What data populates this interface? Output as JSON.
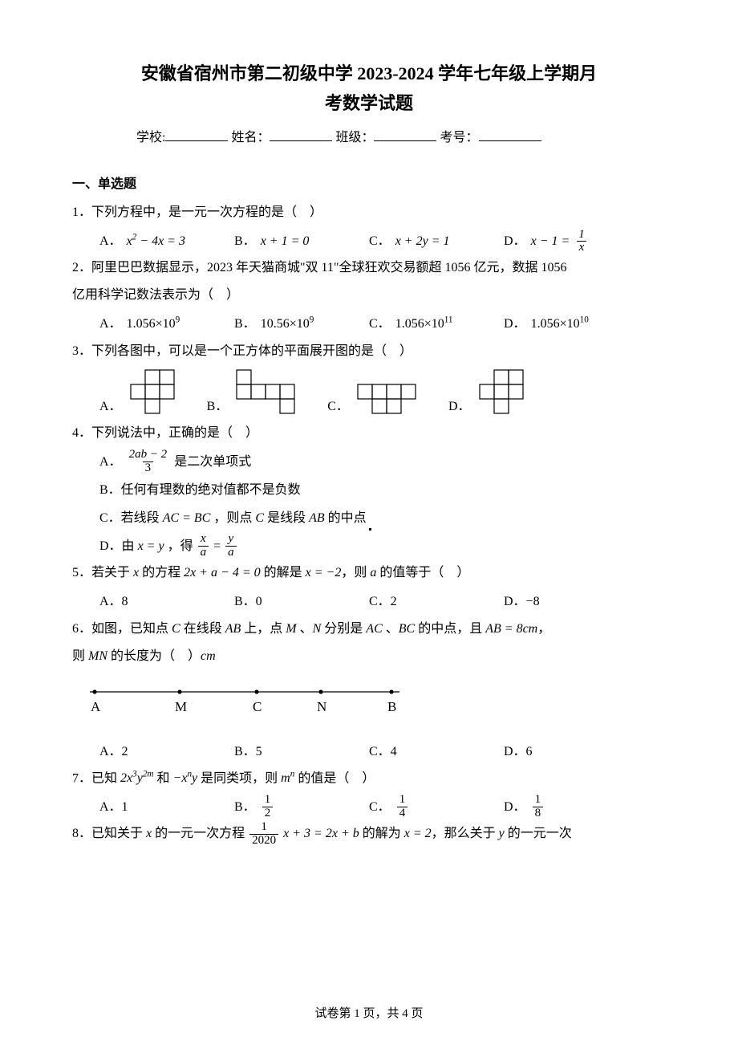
{
  "title_line1": "安徽省宿州市第二初级中学 2023-2024 学年七年级上学期月",
  "title_line2": "考数学试题",
  "blanks": {
    "school": "学校:",
    "name": "姓名：",
    "class": "班级：",
    "exam_no": "考号："
  },
  "section1": "一、单选题",
  "q1": {
    "stem": "1．下列方程中，是一元一次方程的是（　）",
    "A": "A．",
    "B": "B．",
    "C": "C．",
    "D": "D．",
    "A_expr_left": "x",
    "A_expr_sup": "2",
    "A_expr_mid": "− 4x = 3",
    "B_expr": "x + 1 = 0",
    "C_expr": "x + 2y = 1",
    "D_expr_left": "x − 1 =",
    "D_frac_num": "1",
    "D_frac_den": "x"
  },
  "q2": {
    "stem_a": "2．阿里巴巴数据显示，2023 年天猫商城\"双 11\"全球狂欢交易额超 1056 亿元，数据 1056",
    "stem_b": "亿用科学记数法表示为（　）",
    "A": "A．",
    "B": "B．",
    "C": "C．",
    "D": "D．",
    "A_val": "1.056×10",
    "A_sup": "9",
    "B_val": "10.56×10",
    "B_sup": "9",
    "C_val": "1.056×10",
    "C_sup": "11",
    "D_val": "1.056×10",
    "D_sup": "10"
  },
  "q3": {
    "stem": "3．下列各图中，可以是一个正方体的平面展开图的是（　）",
    "A": "A．",
    "B": "B．",
    "C": "C．",
    "D": "D．",
    "cell": 18,
    "figA": [
      [
        1,
        0
      ],
      [
        2,
        0
      ],
      [
        0,
        1
      ],
      [
        1,
        1
      ],
      [
        2,
        1
      ],
      [
        1,
        2
      ]
    ],
    "figB": [
      [
        0,
        0
      ],
      [
        0,
        1
      ],
      [
        1,
        1
      ],
      [
        2,
        1
      ],
      [
        3,
        1
      ],
      [
        3,
        2
      ]
    ],
    "figC": [
      [
        0,
        0
      ],
      [
        1,
        0
      ],
      [
        1,
        1
      ],
      [
        2,
        1
      ],
      [
        2,
        0
      ],
      [
        3,
        0
      ]
    ],
    "figD": [
      [
        1,
        0
      ],
      [
        0,
        1
      ],
      [
        1,
        1
      ],
      [
        2,
        1
      ],
      [
        2,
        0
      ],
      [
        1,
        2
      ]
    ]
  },
  "q4": {
    "stem": "4．下列说法中，正确的是（　）",
    "A": "A．",
    "A_frac_num": "2ab − 2",
    "A_frac_den": "3",
    "A_tail": " 是二次单项式",
    "B": "B．任何有理数的绝对值都不是负数",
    "C_pre": "C．若线段 ",
    "C_mid1": "AC = BC",
    "C_mid2": "，则点 ",
    "C_c": "C",
    "C_mid3": " 是线段 ",
    "C_ab": "AB",
    "C_tail": " 的中点",
    "D_pre": "D．由 ",
    "D_eq": "x = y",
    "D_mid": "，得 ",
    "D_frac1_num": "x",
    "D_frac1_den": "a",
    "D_eqs": " = ",
    "D_frac2_num": "y",
    "D_frac2_den": "a"
  },
  "q5": {
    "stem_pre": "5．若关于 ",
    "stem_x": "x",
    "stem_mid1": " 的方程 ",
    "stem_eq": "2x + a − 4 = 0",
    "stem_mid2": " 的解是 ",
    "stem_sol": "x = −2",
    "stem_mid3": "，则 ",
    "stem_a": "a",
    "stem_tail": " 的值等于（　）",
    "A": "A．8",
    "B": "B．0",
    "C": "C．2",
    "D": "D．−8"
  },
  "q6": {
    "stem_a_pre": "6．如图，已知点 ",
    "stem_c": "C",
    "stem_a_mid1": " 在线段 ",
    "stem_ab": "AB",
    "stem_a_mid2": " 上，点 ",
    "stem_m": "M",
    "stem_a_mid3": " 、",
    "stem_n": "N",
    "stem_a_mid4": " 分别是 ",
    "stem_ac": "AC",
    "stem_a_mid5": " 、",
    "stem_bc": "BC",
    "stem_a_mid6": " 的中点，且 ",
    "stem_len": "AB = 8cm",
    "stem_a_tail": "，",
    "stem_b_pre": "则 ",
    "stem_mn": "MN",
    "stem_b_mid": " 的长度为（　）",
    "stem_cm": "cm",
    "labels": {
      "A": "A",
      "M": "M",
      "C": "C",
      "N": "N",
      "B": "B"
    },
    "optA": "A．2",
    "optB": "B．5",
    "optC": "C．4",
    "optD": "D．6"
  },
  "q7": {
    "pre": "7．已知 ",
    "t1": "2x",
    "s1": "3",
    "t2": "y",
    "s2": "2m",
    "mid1": " 和 ",
    "t3": "−x",
    "s3": "n",
    "t4": "y",
    "mid2": " 是同类项，则 ",
    "t5": "m",
    "s5": "n",
    "tail": " 的值是（　）",
    "A": "A．1",
    "B": "B．",
    "Bn": "1",
    "Bd": "2",
    "C": "C．",
    "Cn": "1",
    "Cd": "4",
    "D": "D．",
    "Dn": "1",
    "Dd": "8"
  },
  "q8": {
    "pre": "8．已知关于 ",
    "x": "x",
    "mid1": " 的一元一次方程 ",
    "frac_num": "1",
    "frac_den": "2020",
    "eq_mid": " x + 3 = 2x + b",
    "mid2": " 的解为 ",
    "sol": "x = 2",
    "mid3": "，那么关于 ",
    "y": "y",
    "tail": " 的一元一次"
  },
  "footer": "试卷第 1 页，共 4 页"
}
